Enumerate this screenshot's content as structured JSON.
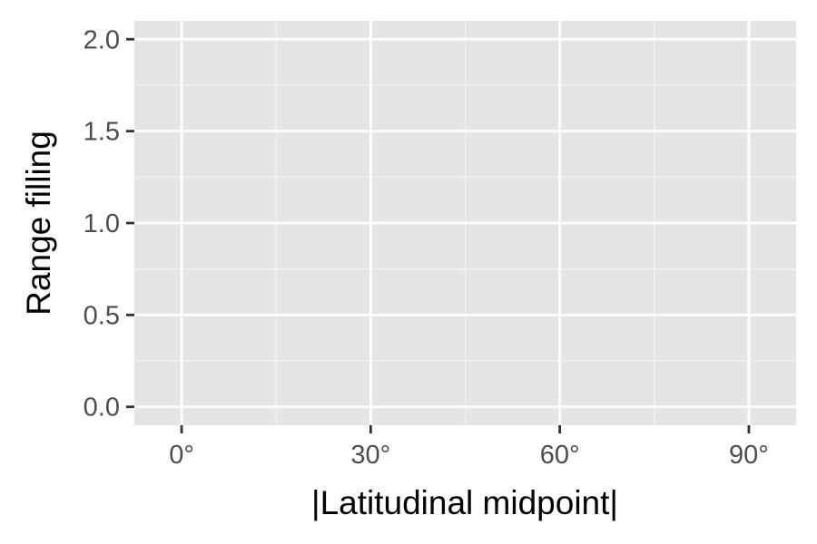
{
  "chart_data": {
    "type": "scatter",
    "title": "",
    "xlabel": "|Latitudinal midpoint|",
    "ylabel": "Range filling",
    "xlim": [
      -7.5,
      97.5
    ],
    "ylim": [
      -0.1,
      2.1
    ],
    "x_ticks": [
      {
        "value": 0,
        "label": "0°"
      },
      {
        "value": 30,
        "label": "30°"
      },
      {
        "value": 60,
        "label": "60°"
      },
      {
        "value": 90,
        "label": "90°"
      }
    ],
    "x_minor_ticks": [
      15,
      45,
      75
    ],
    "y_ticks": [
      {
        "value": 0,
        "label": "0.0"
      },
      {
        "value": 0.5,
        "label": "0.5"
      },
      {
        "value": 1.0,
        "label": "1.0"
      },
      {
        "value": 1.5,
        "label": "1.5"
      },
      {
        "value": 2.0,
        "label": "2.0"
      }
    ],
    "y_minor_ticks": [
      0.25,
      0.75,
      1.25,
      1.75
    ],
    "series": [],
    "grid": true,
    "legend": "none",
    "colors": {
      "panel_background": "#e5e5e5",
      "grid_major": "#ffffff",
      "grid_minor": "#f2f2f2",
      "tick_mark": "#333333"
    }
  }
}
